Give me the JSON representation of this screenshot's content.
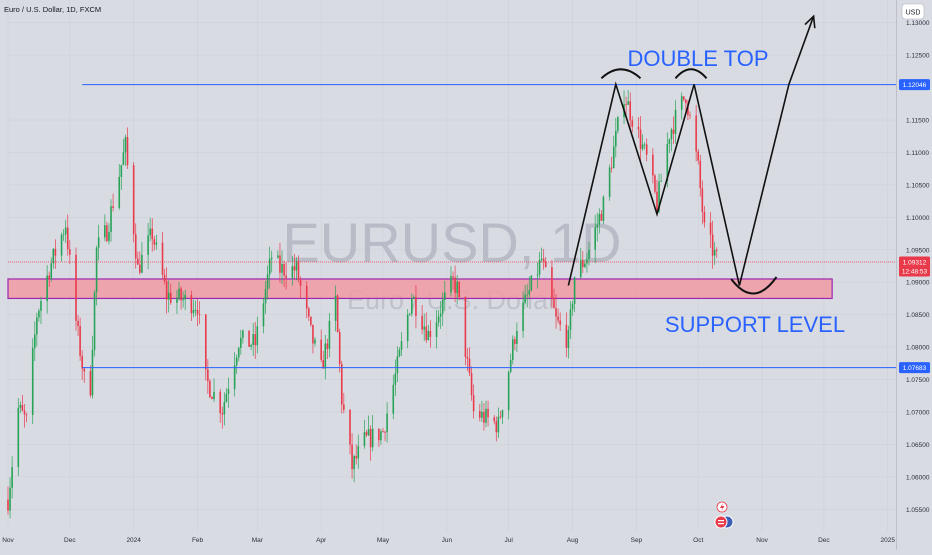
{
  "header": {
    "title": "Euro / U.S. Dollar, 1D, FXCM",
    "currency_button": "USD"
  },
  "watermark": {
    "symbol": "EURUSD, 1D",
    "name": "Euro / U.S. Dollar"
  },
  "colors": {
    "up": "#26a356",
    "down": "#e83a4a",
    "line_blue": "#2962ff",
    "zone_fill": "#f09aa3",
    "zone_border": "#9c27b0",
    "text_blue": "#2962ff"
  },
  "chart_data": {
    "type": "candlestick",
    "y_range": [
      1.0515,
      1.1335
    ],
    "y_ticks": [
      {
        "value": 1.13,
        "label": "1.13000"
      },
      {
        "value": 1.125,
        "label": "1.12500"
      },
      {
        "value": 1.115,
        "label": "1.11500"
      },
      {
        "value": 1.11,
        "label": "1.11000"
      },
      {
        "value": 1.105,
        "label": "1.10500"
      },
      {
        "value": 1.1,
        "label": "1.10000"
      },
      {
        "value": 1.095,
        "label": "1.09500"
      },
      {
        "value": 1.09,
        "label": "1.09000"
      },
      {
        "value": 1.085,
        "label": "1.08500"
      },
      {
        "value": 1.08,
        "label": "1.08000"
      },
      {
        "value": 1.075,
        "label": "1.07500"
      },
      {
        "value": 1.07,
        "label": "1.07000"
      },
      {
        "value": 1.065,
        "label": "1.06500"
      },
      {
        "value": 1.06,
        "label": "1.06000"
      },
      {
        "value": 1.055,
        "label": "1.05500"
      }
    ],
    "x_range": [
      "2023-11-01",
      "2025-01-05"
    ],
    "x_ticks": [
      {
        "date": "2023-11-01",
        "label": "Nov"
      },
      {
        "date": "2023-12-01",
        "label": "Dec"
      },
      {
        "date": "2024-01-01",
        "label": "2024"
      },
      {
        "date": "2024-02-01",
        "label": "Feb"
      },
      {
        "date": "2024-03-01",
        "label": "Mar"
      },
      {
        "date": "2024-04-01",
        "label": "Apr"
      },
      {
        "date": "2024-05-01",
        "label": "May"
      },
      {
        "date": "2024-06-01",
        "label": "Jun"
      },
      {
        "date": "2024-07-01",
        "label": "Jul"
      },
      {
        "date": "2024-08-01",
        "label": "Aug"
      },
      {
        "date": "2024-09-01",
        "label": "Sep"
      },
      {
        "date": "2024-10-01",
        "label": "Oct"
      },
      {
        "date": "2024-11-01",
        "label": "Nov"
      },
      {
        "date": "2024-12-01",
        "label": "Dec"
      },
      {
        "date": "2025-01-01",
        "label": "2025"
      }
    ],
    "price_path": [
      [
        "2023-11-01",
        1.0565
      ],
      [
        "2023-11-06",
        1.0705
      ],
      [
        "2023-11-10",
        1.0685
      ],
      [
        "2023-11-15",
        1.085
      ],
      [
        "2023-11-21",
        1.092
      ],
      [
        "2023-11-29",
        1.099
      ],
      [
        "2023-12-04",
        1.084
      ],
      [
        "2023-12-08",
        1.075
      ],
      [
        "2023-12-11",
        1.074
      ],
      [
        "2023-12-14",
        1.095
      ],
      [
        "2023-12-19",
        1.098
      ],
      [
        "2023-12-28",
        1.111
      ],
      [
        "2024-01-03",
        1.092
      ],
      [
        "2024-01-10",
        1.0975
      ],
      [
        "2024-01-17",
        1.088
      ],
      [
        "2024-01-23",
        1.0875
      ],
      [
        "2024-02-01",
        1.0865
      ],
      [
        "2024-02-05",
        1.075
      ],
      [
        "2024-02-13",
        1.0705
      ],
      [
        "2024-02-21",
        1.081
      ],
      [
        "2024-02-29",
        1.0805
      ],
      [
        "2024-03-08",
        1.094
      ],
      [
        "2024-03-12",
        1.092
      ],
      [
        "2024-03-20",
        1.092
      ],
      [
        "2024-03-27",
        1.082
      ],
      [
        "2024-04-01",
        1.0765
      ],
      [
        "2024-04-08",
        1.087
      ],
      [
        "2024-04-11",
        1.072
      ],
      [
        "2024-04-16",
        1.0615
      ],
      [
        "2024-04-22",
        1.0655
      ],
      [
        "2024-05-01",
        1.067
      ],
      [
        "2024-05-08",
        1.077
      ],
      [
        "2024-05-15",
        1.088
      ],
      [
        "2024-05-23",
        1.082
      ],
      [
        "2024-06-04",
        1.09
      ],
      [
        "2024-06-06",
        1.089
      ],
      [
        "2024-06-14",
        1.07
      ],
      [
        "2024-06-26",
        1.068
      ],
      [
        "2024-07-05",
        1.0835
      ],
      [
        "2024-07-17",
        1.0935
      ],
      [
        "2024-07-24",
        1.084
      ],
      [
        "2024-07-30",
        1.081
      ],
      [
        "2024-08-02",
        1.091
      ],
      [
        "2024-08-08",
        1.094
      ],
      [
        "2024-08-16",
        1.102
      ],
      [
        "2024-08-26",
        1.119
      ],
      [
        "2024-09-06",
        1.109
      ],
      [
        "2024-09-11",
        1.102
      ],
      [
        "2024-09-17",
        1.113
      ],
      [
        "2024-09-25",
        1.119
      ],
      [
        "2024-10-01",
        1.1075
      ],
      [
        "2024-10-04",
        1.098
      ],
      [
        "2024-10-10",
        1.0935
      ]
    ],
    "last_date": "2024-10-10",
    "levels": [
      {
        "value": 1.12046,
        "label": "1.12046"
      },
      {
        "value": 1.07683,
        "label": "1.07683"
      }
    ],
    "support_zone": {
      "low": 1.0875,
      "high": 1.0905,
      "from": "2023-11-01",
      "to": "2024-12-05"
    },
    "current_price": {
      "value": 1.09312,
      "label": "1.09312",
      "countdown": "12:48:53"
    },
    "annotations": {
      "double_top": "DOUBLE TOP",
      "support": "SUPPORT LEVEL"
    },
    "forecast_path": [
      [
        "2024-07-30",
        1.0895
      ],
      [
        "2024-08-22",
        1.1205
      ],
      [
        "2024-09-11",
        1.1005
      ],
      [
        "2024-09-29",
        1.1205
      ],
      [
        "2024-10-21",
        1.0895
      ],
      [
        "2024-11-14",
        1.1205
      ],
      [
        "2024-11-26",
        1.131
      ]
    ],
    "bump_dates": [
      [
        "2024-08-15",
        "2024-09-03"
      ],
      [
        "2024-09-20",
        "2024-10-05"
      ]
    ],
    "bottom_arc": [
      "2024-10-17",
      "2024-11-08"
    ]
  }
}
